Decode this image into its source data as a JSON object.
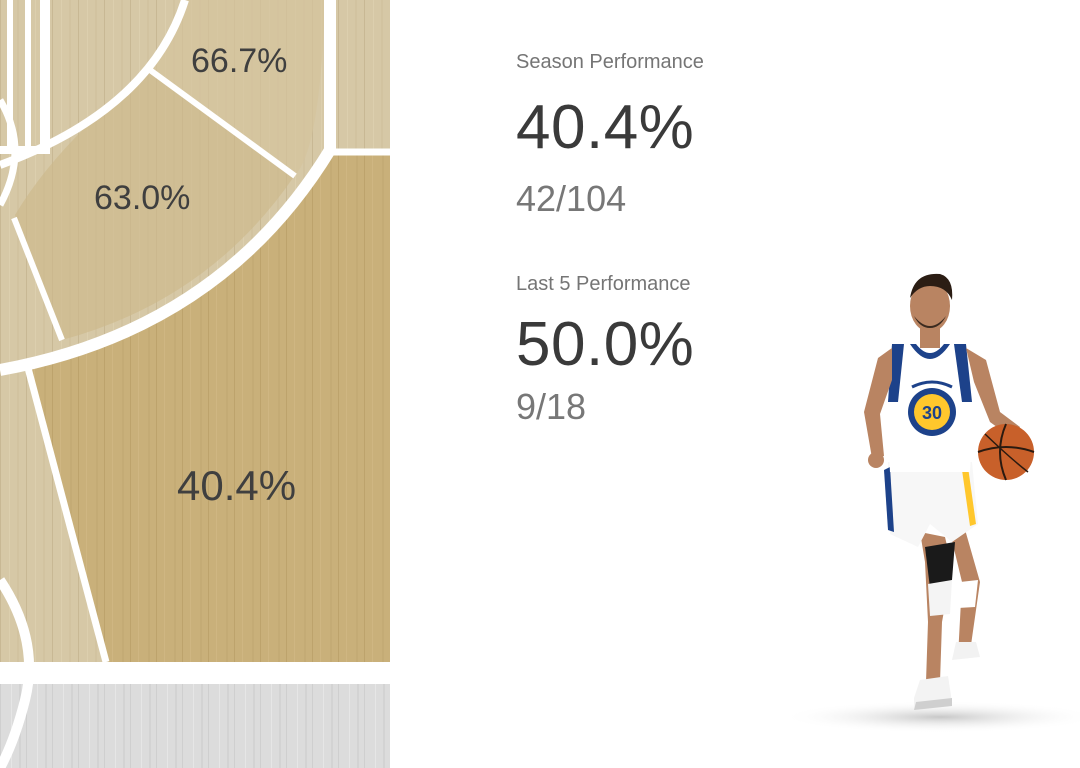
{
  "court": {
    "zones": [
      {
        "id": "zone-a",
        "label": "66.7%"
      },
      {
        "id": "zone-b",
        "label": "63.0%"
      },
      {
        "id": "zone-c",
        "label": "40.4%"
      }
    ],
    "colors": {
      "active_wood": "#c9b07a",
      "inactive_wood": "#d3c4a0",
      "gray_wood": "#d9d9d9",
      "lines": "#ffffff"
    }
  },
  "stats": {
    "season": {
      "heading": "Season Performance",
      "percentage": "40.4%",
      "fraction": "42/104"
    },
    "last5": {
      "heading": "Last 5 Performance",
      "percentage": "50.0%",
      "fraction": "9/18"
    }
  },
  "player": {
    "jersey_number": "30",
    "jersey_colors": {
      "primary": "#ffffff",
      "trim": "#1d428a",
      "accent": "#ffc72c"
    },
    "ball_color": "#c8602a"
  }
}
